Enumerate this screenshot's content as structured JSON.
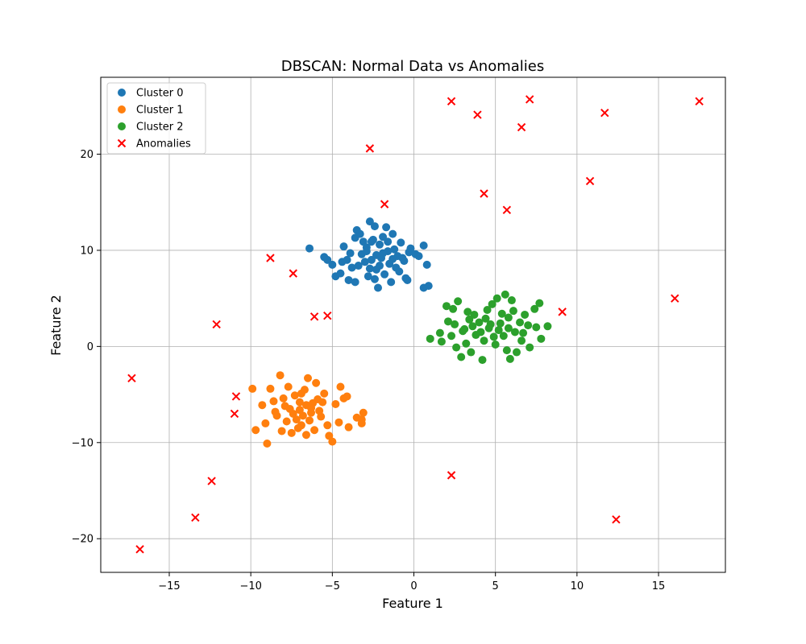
{
  "chart_data": {
    "type": "scatter",
    "title": "DBSCAN: Normal Data vs Anomalies",
    "xlabel": "Feature 1",
    "ylabel": "Feature 2",
    "xlim": [
      -19.2,
      19.1
    ],
    "ylim": [
      -23.5,
      28.0
    ],
    "xticks": [
      -15,
      -10,
      -5,
      0,
      5,
      10,
      15
    ],
    "xtick_labels": [
      "−15",
      "−10",
      "−5",
      "0",
      "5",
      "10",
      "15"
    ],
    "yticks": [
      -20,
      -10,
      0,
      10,
      20
    ],
    "ytick_labels": [
      "−20",
      "−10",
      "0",
      "10",
      "20"
    ],
    "grid": true,
    "legend_position": "upper-left",
    "series": [
      {
        "name": "Cluster 0",
        "color": "#1f77b4",
        "marker": "circle",
        "points": [
          [
            -6.4,
            10.2
          ],
          [
            -5.5,
            9.3
          ],
          [
            -5.3,
            9.0
          ],
          [
            -5.0,
            8.5
          ],
          [
            -4.8,
            7.3
          ],
          [
            -4.5,
            7.6
          ],
          [
            -4.3,
            10.4
          ],
          [
            -4.1,
            9.0
          ],
          [
            -4.0,
            6.9
          ],
          [
            -3.8,
            8.2
          ],
          [
            -3.6,
            11.3
          ],
          [
            -3.6,
            6.7
          ],
          [
            -3.5,
            12.1
          ],
          [
            -3.3,
            11.7
          ],
          [
            -3.2,
            9.6
          ],
          [
            -3.0,
            8.8
          ],
          [
            -2.9,
            10.3
          ],
          [
            -2.8,
            7.3
          ],
          [
            -2.7,
            13.0
          ],
          [
            -2.6,
            9.0
          ],
          [
            -2.5,
            11.1
          ],
          [
            -2.4,
            12.5
          ],
          [
            -2.3,
            8.0
          ],
          [
            -2.2,
            6.1
          ],
          [
            -2.1,
            10.6
          ],
          [
            -2.0,
            9.2
          ],
          [
            -1.9,
            11.4
          ],
          [
            -1.8,
            7.5
          ],
          [
            -1.7,
            12.4
          ],
          [
            -1.6,
            9.9
          ],
          [
            -1.5,
            8.6
          ],
          [
            -1.4,
            6.7
          ],
          [
            -1.3,
            11.7
          ],
          [
            -1.2,
            10.1
          ],
          [
            -1.0,
            9.4
          ],
          [
            -0.9,
            7.8
          ],
          [
            -0.8,
            10.8
          ],
          [
            -0.6,
            8.9
          ],
          [
            -0.5,
            7.1
          ],
          [
            -0.4,
            6.9
          ],
          [
            -0.3,
            9.8
          ],
          [
            -0.2,
            10.2
          ],
          [
            0.1,
            9.6
          ],
          [
            0.3,
            9.4
          ],
          [
            0.6,
            10.5
          ],
          [
            0.6,
            6.1
          ],
          [
            0.9,
            6.3
          ],
          [
            0.8,
            8.5
          ],
          [
            -3.9,
            9.7
          ],
          [
            -3.4,
            8.4
          ],
          [
            -2.9,
            9.9
          ],
          [
            -2.6,
            10.9
          ],
          [
            -2.3,
            9.5
          ],
          [
            -2.1,
            8.4
          ],
          [
            -1.9,
            9.7
          ],
          [
            -1.6,
            10.9
          ],
          [
            -1.3,
            9.1
          ],
          [
            -2.7,
            8.1
          ],
          [
            -3.1,
            10.9
          ],
          [
            -4.4,
            8.8
          ],
          [
            -1.1,
            8.2
          ],
          [
            -0.7,
            9.2
          ],
          [
            -2.4,
            7.0
          ]
        ]
      },
      {
        "name": "Cluster 1",
        "color": "#ff7f0e",
        "marker": "circle",
        "points": [
          [
            -9.9,
            -4.4
          ],
          [
            -9.7,
            -8.7
          ],
          [
            -9.3,
            -6.1
          ],
          [
            -9.1,
            -8.0
          ],
          [
            -9.0,
            -10.1
          ],
          [
            -8.8,
            -4.4
          ],
          [
            -8.6,
            -5.7
          ],
          [
            -8.4,
            -7.2
          ],
          [
            -8.2,
            -3.0
          ],
          [
            -8.1,
            -8.8
          ],
          [
            -7.9,
            -6.2
          ],
          [
            -7.7,
            -4.2
          ],
          [
            -7.5,
            -9.0
          ],
          [
            -7.3,
            -5.1
          ],
          [
            -7.2,
            -7.6
          ],
          [
            -7.0,
            -6.6
          ],
          [
            -6.9,
            -8.2
          ],
          [
            -6.7,
            -4.5
          ],
          [
            -6.6,
            -9.2
          ],
          [
            -6.5,
            -3.3
          ],
          [
            -6.3,
            -6.9
          ],
          [
            -6.1,
            -8.7
          ],
          [
            -6.0,
            -3.8
          ],
          [
            -5.9,
            -5.5
          ],
          [
            -5.7,
            -7.3
          ],
          [
            -5.5,
            -4.9
          ],
          [
            -5.3,
            -8.2
          ],
          [
            -5.2,
            -9.3
          ],
          [
            -5.0,
            -9.9
          ],
          [
            -4.8,
            -6.0
          ],
          [
            -4.6,
            -7.9
          ],
          [
            -4.5,
            -4.2
          ],
          [
            -4.3,
            -5.4
          ],
          [
            -4.1,
            -5.2
          ],
          [
            -4.0,
            -8.4
          ],
          [
            -3.5,
            -7.4
          ],
          [
            -3.2,
            -7.6
          ],
          [
            -3.1,
            -6.9
          ],
          [
            -3.2,
            -8.0
          ],
          [
            -7.6,
            -6.5
          ],
          [
            -7.4,
            -7.0
          ],
          [
            -7.0,
            -5.8
          ],
          [
            -6.8,
            -7.2
          ],
          [
            -6.6,
            -6.1
          ],
          [
            -6.4,
            -7.7
          ],
          [
            -6.2,
            -5.9
          ],
          [
            -7.8,
            -7.8
          ],
          [
            -8.0,
            -5.4
          ],
          [
            -6.9,
            -4.9
          ],
          [
            -6.3,
            -6.4
          ],
          [
            -5.8,
            -6.7
          ],
          [
            -7.1,
            -8.5
          ],
          [
            -8.5,
            -6.8
          ],
          [
            -5.6,
            -5.8
          ]
        ]
      },
      {
        "name": "Cluster 2",
        "color": "#2ca02c",
        "marker": "circle",
        "points": [
          [
            1.0,
            0.8
          ],
          [
            1.6,
            1.4
          ],
          [
            1.7,
            0.5
          ],
          [
            2.0,
            4.2
          ],
          [
            2.1,
            2.6
          ],
          [
            2.3,
            1.1
          ],
          [
            2.4,
            3.9
          ],
          [
            2.6,
            -0.1
          ],
          [
            2.7,
            4.7
          ],
          [
            2.9,
            -1.1
          ],
          [
            3.1,
            1.8
          ],
          [
            3.2,
            0.3
          ],
          [
            3.4,
            2.8
          ],
          [
            3.5,
            -0.6
          ],
          [
            3.7,
            3.3
          ],
          [
            3.8,
            1.2
          ],
          [
            4.0,
            2.5
          ],
          [
            4.2,
            -1.4
          ],
          [
            4.3,
            0.6
          ],
          [
            4.5,
            3.8
          ],
          [
            4.6,
            1.9
          ],
          [
            4.8,
            4.4
          ],
          [
            5.0,
            0.2
          ],
          [
            5.1,
            5.0
          ],
          [
            5.3,
            2.4
          ],
          [
            5.5,
            1.1
          ],
          [
            5.6,
            5.4
          ],
          [
            5.7,
            -0.4
          ],
          [
            5.8,
            3.0
          ],
          [
            5.9,
            -1.3
          ],
          [
            6.0,
            4.8
          ],
          [
            6.2,
            1.5
          ],
          [
            6.3,
            -0.6
          ],
          [
            6.5,
            2.5
          ],
          [
            6.6,
            0.6
          ],
          [
            6.8,
            3.3
          ],
          [
            7.0,
            2.2
          ],
          [
            7.1,
            -0.1
          ],
          [
            7.4,
            3.9
          ],
          [
            7.5,
            2.0
          ],
          [
            7.7,
            4.5
          ],
          [
            7.8,
            0.8
          ],
          [
            8.2,
            2.1
          ],
          [
            3.0,
            1.6
          ],
          [
            3.6,
            2.1
          ],
          [
            4.1,
            1.5
          ],
          [
            4.7,
            2.3
          ],
          [
            5.2,
            1.7
          ],
          [
            5.8,
            1.9
          ],
          [
            4.4,
            2.9
          ],
          [
            3.3,
            3.6
          ],
          [
            6.1,
            3.7
          ],
          [
            2.5,
            2.3
          ],
          [
            4.9,
            1.0
          ],
          [
            5.4,
            3.4
          ],
          [
            6.7,
            1.4
          ]
        ]
      },
      {
        "name": "Anomalies",
        "color": "#ff0000",
        "marker": "x",
        "points": [
          [
            2.3,
            25.5
          ],
          [
            3.9,
            24.1
          ],
          [
            7.1,
            25.7
          ],
          [
            11.7,
            24.3
          ],
          [
            17.5,
            25.5
          ],
          [
            6.6,
            22.8
          ],
          [
            -2.7,
            20.6
          ],
          [
            10.8,
            17.2
          ],
          [
            4.3,
            15.9
          ],
          [
            5.7,
            14.2
          ],
          [
            -1.8,
            14.8
          ],
          [
            -8.8,
            9.2
          ],
          [
            -7.4,
            7.6
          ],
          [
            16.0,
            5.0
          ],
          [
            9.1,
            3.6
          ],
          [
            -6.1,
            3.1
          ],
          [
            -5.3,
            3.2
          ],
          [
            -12.1,
            2.3
          ],
          [
            -17.3,
            -3.3
          ],
          [
            -10.9,
            -5.2
          ],
          [
            -11.0,
            -7.0
          ],
          [
            2.3,
            -13.4
          ],
          [
            -12.4,
            -14.0
          ],
          [
            -13.4,
            -17.8
          ],
          [
            12.4,
            -18.0
          ],
          [
            -16.8,
            -21.1
          ]
        ]
      }
    ]
  }
}
